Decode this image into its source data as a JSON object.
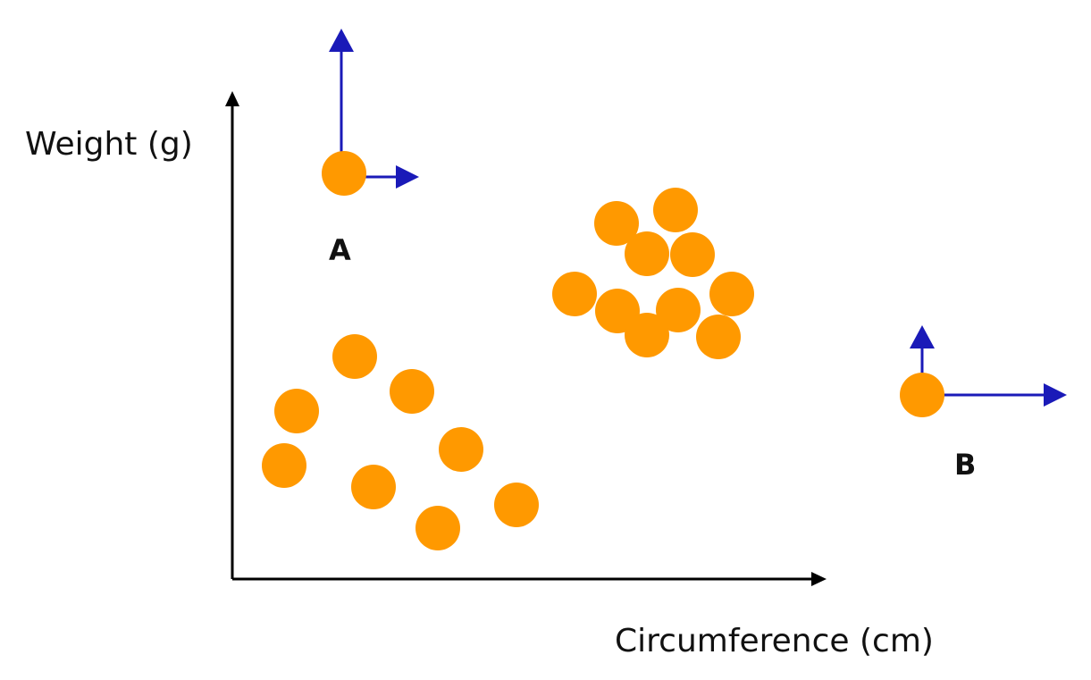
{
  "axes": {
    "y_label": "Weight (g)",
    "x_label": "Circumference (cm)"
  },
  "colors": {
    "point": "#FF9900",
    "vector": "#1A1AB8",
    "axis": "#000000"
  },
  "labels": {
    "point_a": "A",
    "point_b": "B"
  }
}
